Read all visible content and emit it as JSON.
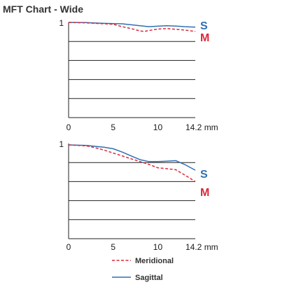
{
  "title": "MFT Chart - Wide",
  "colors": {
    "sagittal": "#2f6fb3",
    "meridional": "#d92a3a",
    "grid": "#222222",
    "axis": "#222222"
  },
  "legend": [
    {
      "key": "meridional",
      "label": "Meridional",
      "style": "dashed"
    },
    {
      "key": "sagittal",
      "label": "Sagittal",
      "style": "solid"
    }
  ],
  "chart_data": [
    {
      "type": "line",
      "xlabel": "",
      "ylabel": "",
      "xlim": [
        0,
        14.2
      ],
      "ylim": [
        0,
        1
      ],
      "y_gridlines": [
        0.2,
        0.4,
        0.6,
        0.8
      ],
      "x_ticks": [
        {
          "value": 0,
          "label": "0"
        },
        {
          "value": 5,
          "label": "5"
        },
        {
          "value": 10,
          "label": "10"
        },
        {
          "value": 14.2,
          "label": "14.2 mm"
        }
      ],
      "y_ticks": [
        {
          "value": 1,
          "label": "1"
        }
      ],
      "series": [
        {
          "key": "sagittal",
          "tag": "S",
          "style": "solid",
          "points": [
            [
              0,
              1.0
            ],
            [
              2,
              0.998
            ],
            [
              4,
              0.99
            ],
            [
              6,
              0.985
            ],
            [
              8,
              0.965
            ],
            [
              9,
              0.955
            ],
            [
              10,
              0.96
            ],
            [
              11,
              0.965
            ],
            [
              12,
              0.962
            ],
            [
              13,
              0.955
            ],
            [
              14.2,
              0.95
            ]
          ]
        },
        {
          "key": "meridional",
          "tag": "M",
          "style": "dashed",
          "points": [
            [
              0,
              1.0
            ],
            [
              2,
              0.995
            ],
            [
              4,
              0.985
            ],
            [
              5,
              0.98
            ],
            [
              6,
              0.955
            ],
            [
              7,
              0.935
            ],
            [
              8,
              0.91
            ],
            [
              8.5,
              0.905
            ],
            [
              9,
              0.915
            ],
            [
              10,
              0.93
            ],
            [
              11,
              0.935
            ],
            [
              12,
              0.928
            ],
            [
              13,
              0.92
            ],
            [
              14.2,
              0.905
            ]
          ]
        }
      ]
    },
    {
      "type": "line",
      "xlabel": "",
      "ylabel": "",
      "xlim": [
        0,
        14.2
      ],
      "ylim": [
        0,
        1
      ],
      "y_gridlines": [
        0.2,
        0.4,
        0.6,
        0.8
      ],
      "x_ticks": [
        {
          "value": 0,
          "label": "0"
        },
        {
          "value": 5,
          "label": "5"
        },
        {
          "value": 10,
          "label": "10"
        },
        {
          "value": 14.2,
          "label": "14.2 mm"
        }
      ],
      "y_ticks": [
        {
          "value": 1,
          "label": "1"
        }
      ],
      "series": [
        {
          "key": "sagittal",
          "tag": "S",
          "style": "solid",
          "points": [
            [
              0,
              0.985
            ],
            [
              2,
              0.98
            ],
            [
              4,
              0.96
            ],
            [
              5,
              0.945
            ],
            [
              6,
              0.91
            ],
            [
              7,
              0.87
            ],
            [
              8,
              0.83
            ],
            [
              9,
              0.81
            ],
            [
              10,
              0.81
            ],
            [
              11,
              0.815
            ],
            [
              12,
              0.82
            ],
            [
              13,
              0.78
            ],
            [
              14.2,
              0.72
            ]
          ]
        },
        {
          "key": "meridional",
          "tag": "M",
          "style": "dashed",
          "points": [
            [
              0,
              0.985
            ],
            [
              2,
              0.975
            ],
            [
              3,
              0.955
            ],
            [
              4,
              0.93
            ],
            [
              5,
              0.9
            ],
            [
              6,
              0.87
            ],
            [
              7,
              0.84
            ],
            [
              8,
              0.81
            ],
            [
              9,
              0.78
            ],
            [
              10,
              0.745
            ],
            [
              11,
              0.735
            ],
            [
              12,
              0.725
            ],
            [
              13,
              0.67
            ],
            [
              14.2,
              0.6
            ]
          ]
        }
      ]
    }
  ]
}
